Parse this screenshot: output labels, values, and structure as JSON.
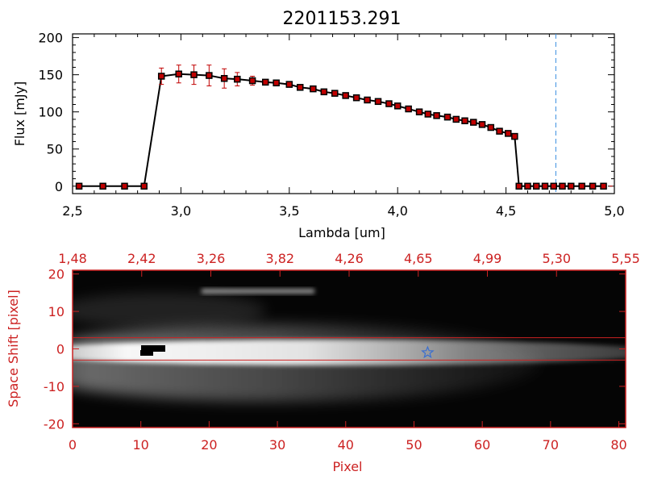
{
  "chart_data": [
    {
      "type": "line",
      "title": "2201153.291",
      "xlabel": "Lambda [um]",
      "ylabel": "Flux [mJy]",
      "xlim": [
        2.5,
        5.0
      ],
      "ylim": [
        -10,
        205
      ],
      "x_ticks": [
        "2.5",
        "3.0",
        "3.5",
        "4.0",
        "4.5",
        "5.0"
      ],
      "y_ticks": [
        "0",
        "50",
        "100",
        "150",
        "200"
      ],
      "vline_x": 4.73,
      "series": [
        {
          "points": [
            {
              "x": 2.53,
              "y": 0
            },
            {
              "x": 2.64,
              "y": 0
            },
            {
              "x": 2.74,
              "y": 0
            },
            {
              "x": 2.83,
              "y": 0
            },
            {
              "x": 2.91,
              "y": 148,
              "err": 11
            },
            {
              "x": 2.99,
              "y": 151,
              "err": 12
            },
            {
              "x": 3.06,
              "y": 150,
              "err": 13
            },
            {
              "x": 3.13,
              "y": 149,
              "err": 14
            },
            {
              "x": 3.2,
              "y": 145,
              "err": 13
            },
            {
              "x": 3.26,
              "y": 144,
              "err": 9
            },
            {
              "x": 3.33,
              "y": 142,
              "err": 6
            },
            {
              "x": 3.39,
              "y": 140,
              "err": 3
            },
            {
              "x": 3.44,
              "y": 139
            },
            {
              "x": 3.5,
              "y": 137
            },
            {
              "x": 3.55,
              "y": 133
            },
            {
              "x": 3.61,
              "y": 131
            },
            {
              "x": 3.66,
              "y": 127
            },
            {
              "x": 3.71,
              "y": 125
            },
            {
              "x": 3.76,
              "y": 122
            },
            {
              "x": 3.81,
              "y": 119
            },
            {
              "x": 3.86,
              "y": 116
            },
            {
              "x": 3.91,
              "y": 114
            },
            {
              "x": 3.96,
              "y": 111
            },
            {
              "x": 4.0,
              "y": 108
            },
            {
              "x": 4.05,
              "y": 104
            },
            {
              "x": 4.1,
              "y": 100
            },
            {
              "x": 4.14,
              "y": 97
            },
            {
              "x": 4.18,
              "y": 95
            },
            {
              "x": 4.23,
              "y": 93
            },
            {
              "x": 4.27,
              "y": 90
            },
            {
              "x": 4.31,
              "y": 88
            },
            {
              "x": 4.35,
              "y": 86
            },
            {
              "x": 4.39,
              "y": 83
            },
            {
              "x": 4.43,
              "y": 79
            },
            {
              "x": 4.47,
              "y": 74
            },
            {
              "x": 4.51,
              "y": 71
            },
            {
              "x": 4.54,
              "y": 67
            },
            {
              "x": 4.56,
              "y": 0
            },
            {
              "x": 4.6,
              "y": 0
            },
            {
              "x": 4.64,
              "y": 0
            },
            {
              "x": 4.68,
              "y": 0
            },
            {
              "x": 4.72,
              "y": 0
            },
            {
              "x": 4.76,
              "y": 0
            },
            {
              "x": 4.8,
              "y": 0
            },
            {
              "x": 4.85,
              "y": 0
            },
            {
              "x": 4.9,
              "y": 0
            },
            {
              "x": 4.95,
              "y": 0
            }
          ]
        }
      ],
      "colors": {
        "line": "#000000",
        "marker": "#c00000",
        "error": "#c00000",
        "vline": "#3a8fe0"
      }
    },
    {
      "type": "heatmap",
      "xlabel": "Pixel",
      "ylabel": "Space Shift [pixel]",
      "xlim": [
        0,
        81
      ],
      "ylim": [
        -21,
        21
      ],
      "x_ticks": [
        "0",
        "10",
        "20",
        "30",
        "40",
        "50",
        "60",
        "70",
        "80"
      ],
      "y_ticks": [
        "20",
        "10",
        "0",
        "-10",
        "-20"
      ],
      "top_ticks": [
        "1.48",
        "2.42",
        "3.26",
        "3.82",
        "4.26",
        "4.65",
        "4.99",
        "5.30",
        "5.55"
      ],
      "hlines_y": [
        3,
        -3
      ],
      "marker": {
        "x": 52,
        "y": -1,
        "shape": "star"
      },
      "colors": {
        "axes": "#cc2222",
        "marker": "#3a6fd0"
      }
    }
  ]
}
